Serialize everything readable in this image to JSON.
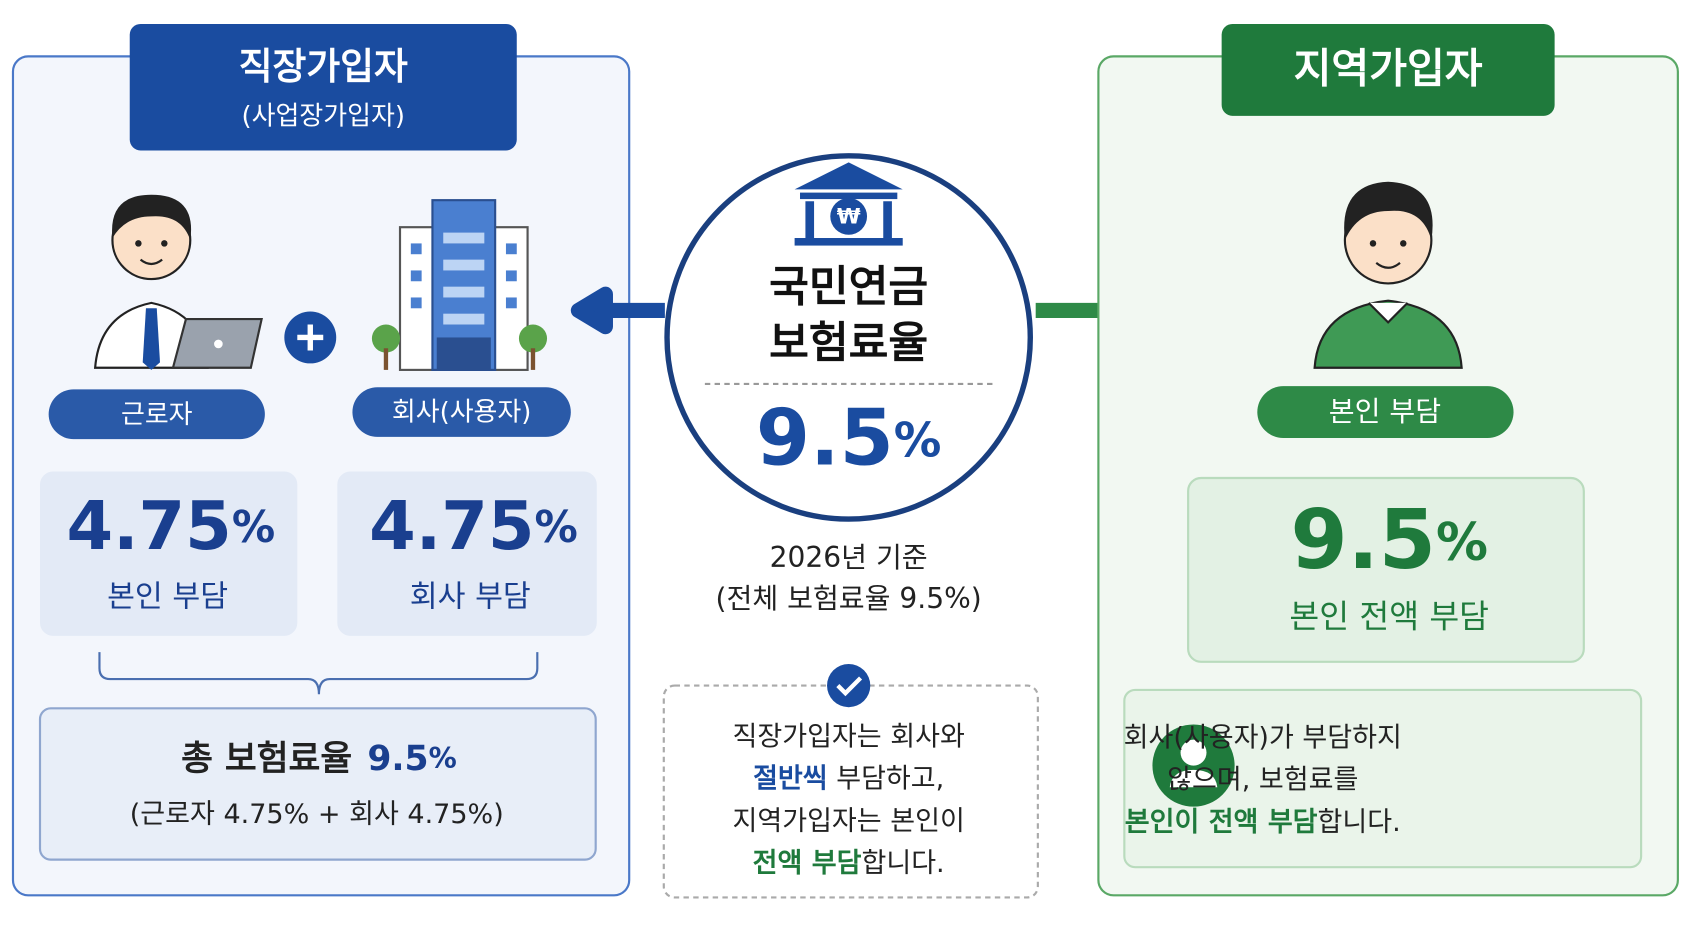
{
  "left": {
    "title": "직장가입자",
    "subtitle": "(사업장가입자)",
    "worker": {
      "label": "근로자",
      "rate": "4.75",
      "unit": "%",
      "desc": "본인 부담"
    },
    "company": {
      "label": "회사(사용자)",
      "rate": "4.75",
      "unit": "%",
      "desc": "회사 부담"
    },
    "total": {
      "label": "총 보험료율",
      "rate": "9.5",
      "unit": "%",
      "detail": "(근로자 4.75% + 회사 4.75%)"
    }
  },
  "center": {
    "title_lines": [
      "국민연금",
      "보험료율"
    ],
    "rate": "9.5",
    "unit": "%",
    "basis": "2026년 기준",
    "basis_detail": "(전체 보험료율 9.5%)",
    "note": [
      [
        {
          "text": "직장가입자는 회사와"
        }
      ],
      [
        {
          "text": "절반씩",
          "em": "#1a4ca0"
        },
        {
          "text": " 부담하고,"
        }
      ],
      [
        {
          "text": "지역가입자는 본인이"
        }
      ],
      [
        {
          "text": "전액 부담",
          "em": "#1f7a3c"
        },
        {
          "text": "합니다."
        }
      ]
    ]
  },
  "right": {
    "title": "지역가입자",
    "label": "본인 부담",
    "rate": "9.5",
    "unit": "%",
    "desc": "본인 전액 부담",
    "note": [
      [
        {
          "text": "회사(사용자)가 부담하지"
        }
      ],
      [
        {
          "text": "않으며, 보험료를"
        }
      ],
      [
        {
          "text": "본인이 전액 부담",
          "em": "#1f7a3c"
        },
        {
          "text": "합니다."
        }
      ]
    ]
  }
}
